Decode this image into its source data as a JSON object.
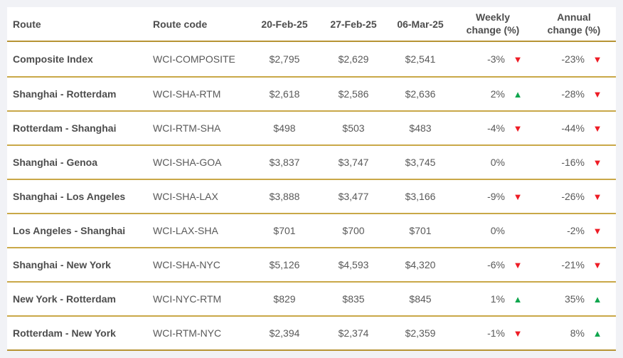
{
  "page": {
    "background_color": "#f1f2f6",
    "card_color": "#ffffff"
  },
  "colors": {
    "header_rule_gold": "#b79434",
    "row_rule_gold": "#c9a848",
    "down_red": "#ee1c25",
    "up_green": "#10a64e",
    "header_text": "#4d4d4d",
    "body_text": "#595959"
  },
  "icons": {
    "down": "▼",
    "up": "▲"
  },
  "chart_data": {
    "type": "table",
    "columns": [
      "Route",
      "Route code",
      "20-Feb-25",
      "27-Feb-25",
      "06-Mar-25",
      "Weekly change (%)",
      "Annual change (%)"
    ],
    "rows": [
      {
        "route": "Composite Index",
        "code": "WCI-COMPOSITE",
        "rates": [
          "$2,795",
          "$2,629",
          "$2,541"
        ],
        "weekly": {
          "value": "-3%",
          "direction": "down"
        },
        "annual": {
          "value": "-23%",
          "direction": "down"
        }
      },
      {
        "route": "Shanghai - Rotterdam",
        "code": "WCI-SHA-RTM",
        "rates": [
          "$2,618",
          "$2,586",
          "$2,636"
        ],
        "weekly": {
          "value": "2%",
          "direction": "up"
        },
        "annual": {
          "value": "-28%",
          "direction": "down"
        }
      },
      {
        "route": "Rotterdam - Shanghai",
        "code": "WCI-RTM-SHA",
        "rates": [
          "$498",
          "$503",
          "$483"
        ],
        "weekly": {
          "value": "-4%",
          "direction": "down"
        },
        "annual": {
          "value": "-44%",
          "direction": "down"
        }
      },
      {
        "route": "Shanghai - Genoa",
        "code": "WCI-SHA-GOA",
        "rates": [
          "$3,837",
          "$3,747",
          "$3,745"
        ],
        "weekly": {
          "value": "0%",
          "direction": "none"
        },
        "annual": {
          "value": "-16%",
          "direction": "down"
        }
      },
      {
        "route": "Shanghai - Los Angeles",
        "code": "WCI-SHA-LAX",
        "rates": [
          "$3,888",
          "$3,477",
          "$3,166"
        ],
        "weekly": {
          "value": "-9%",
          "direction": "down"
        },
        "annual": {
          "value": "-26%",
          "direction": "down"
        }
      },
      {
        "route": "Los Angeles - Shanghai",
        "code": "WCI-LAX-SHA",
        "rates": [
          "$701",
          "$700",
          "$701"
        ],
        "weekly": {
          "value": "0%",
          "direction": "none"
        },
        "annual": {
          "value": "-2%",
          "direction": "down"
        }
      },
      {
        "route": "Shanghai - New York",
        "code": "WCI-SHA-NYC",
        "rates": [
          "$5,126",
          "$4,593",
          "$4,320"
        ],
        "weekly": {
          "value": "-6%",
          "direction": "down"
        },
        "annual": {
          "value": "-21%",
          "direction": "down"
        }
      },
      {
        "route": "New York - Rotterdam",
        "code": "WCI-NYC-RTM",
        "rates": [
          "$829",
          "$835",
          "$845"
        ],
        "weekly": {
          "value": "1%",
          "direction": "up"
        },
        "annual": {
          "value": "35%",
          "direction": "up"
        }
      },
      {
        "route": "Rotterdam - New York",
        "code": "WCI-RTM-NYC",
        "rates": [
          "$2,394",
          "$2,374",
          "$2,359"
        ],
        "weekly": {
          "value": "-1%",
          "direction": "down"
        },
        "annual": {
          "value": "8%",
          "direction": "up"
        }
      }
    ]
  }
}
